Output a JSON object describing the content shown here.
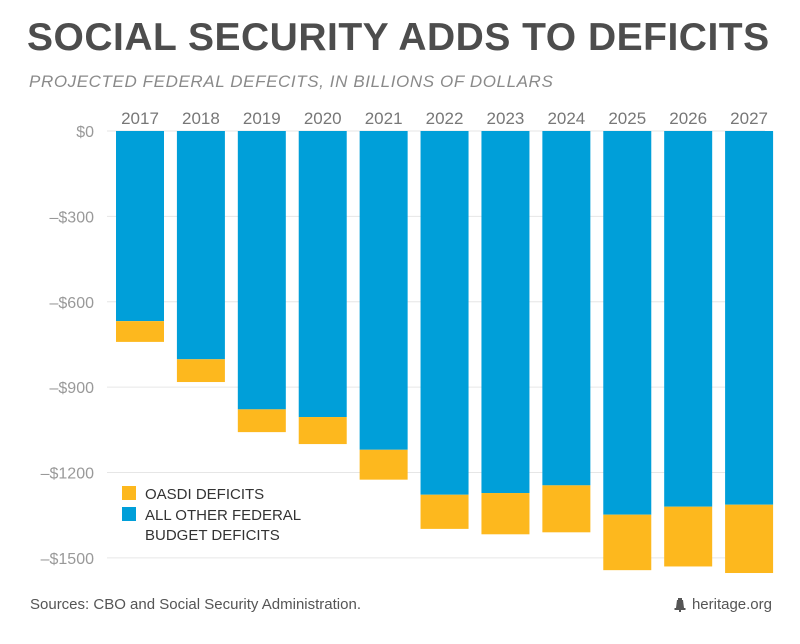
{
  "title": "SOCIAL SECURITY ADDS TO DEFICITS",
  "subtitle": "PROJECTED FEDERAL DEFECITS, IN BILLIONS OF DOLLARS",
  "source": "Sources: CBO and Social Security Administration.",
  "brand": "heritage.org",
  "colors": {
    "oasdi": "#fdb81e",
    "other": "#009fd9",
    "grid": "#e6e6e6",
    "tick": "#999999",
    "year": "#777777"
  },
  "chart_data": {
    "type": "bar",
    "stacked": true,
    "orientation": "negative-down",
    "title": "SOCIAL SECURITY ADDS TO DEFICITS",
    "subtitle": "PROJECTED FEDERAL DEFECITS, IN BILLIONS OF DOLLARS",
    "categories": [
      "2017",
      "2018",
      "2019",
      "2020",
      "2021",
      "2022",
      "2023",
      "2024",
      "2025",
      "2026",
      "2027"
    ],
    "series": [
      {
        "name": "ALL OTHER FEDERAL BUDGET DEFICITS",
        "legend_lines": [
          "ALL OTHER FEDERAL",
          "BUDGET DEFICITS"
        ],
        "values": [
          -668,
          -802,
          -978,
          -1005,
          -1120,
          -1278,
          -1272,
          -1245,
          -1348,
          -1320,
          -1313
        ]
      },
      {
        "name": "OASDI DEFICITS",
        "legend_lines": [
          "OASDI DEFICITS"
        ],
        "values": [
          -73,
          -80,
          -80,
          -95,
          -105,
          -120,
          -145,
          -165,
          -195,
          -210,
          -240
        ]
      }
    ],
    "legend_order": [
      1,
      0
    ],
    "legend_position": "bottom-left",
    "ylim": [
      -1560,
      0
    ],
    "yticks": [
      0,
      -300,
      -600,
      -900,
      -1200,
      -1500
    ],
    "ytick_labels": [
      "$0",
      "–$300",
      "–$600",
      "–$900",
      "–$1200",
      "–$1500"
    ],
    "grid": true,
    "xaxis_position": "top"
  }
}
